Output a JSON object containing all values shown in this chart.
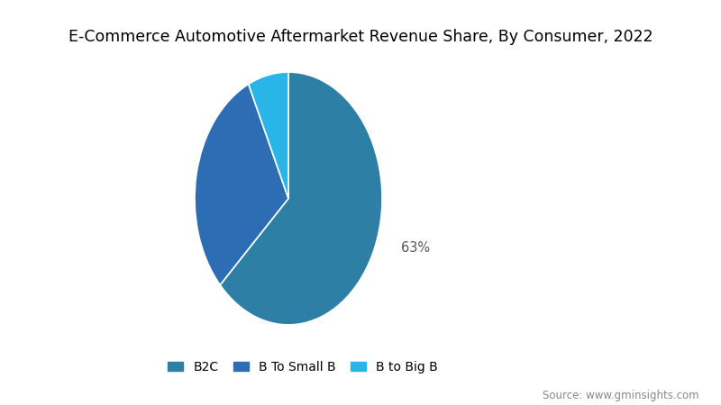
{
  "title": "E-Commerce Automotive Aftermarket Revenue Share, By Consumer, 2022",
  "slices": [
    63,
    30,
    7
  ],
  "labels": [
    "B2C",
    "B To Small B",
    "B to Big B"
  ],
  "colors": [
    "#2e7fa5",
    "#2d6db4",
    "#29b5e8"
  ],
  "pct_label": "63%",
  "source_text": "Source: www.gminsights.com",
  "background_color": "#ffffff",
  "title_fontsize": 12.5,
  "legend_fontsize": 10,
  "source_fontsize": 8.5
}
